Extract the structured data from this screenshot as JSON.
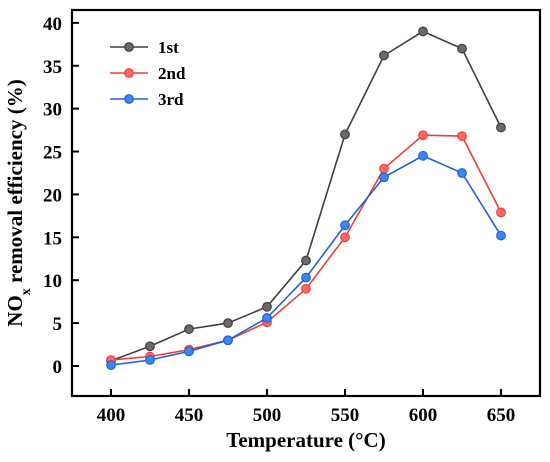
{
  "chart_data": {
    "type": "line",
    "x": [
      400,
      425,
      450,
      475,
      500,
      525,
      550,
      575,
      600,
      625,
      650
    ],
    "series": [
      {
        "name": "1st",
        "color": "#3f3f3f",
        "marker_fill": "#6a6a6a",
        "values": [
          0.6,
          2.3,
          4.3,
          5.0,
          6.9,
          12.3,
          27.0,
          36.2,
          39.0,
          37.0,
          27.8
        ]
      },
      {
        "name": "2nd",
        "color": "#e8403c",
        "marker_fill": "#ff6a66",
        "values": [
          0.7,
          1.1,
          1.9,
          3.0,
          5.1,
          9.0,
          15.0,
          23.0,
          26.9,
          26.8,
          17.9
        ]
      },
      {
        "name": "3rd",
        "color": "#1f63d6",
        "marker_fill": "#3f86f5",
        "values": [
          0.1,
          0.7,
          1.7,
          3.0,
          5.6,
          10.3,
          16.4,
          22.0,
          24.5,
          22.5,
          15.2
        ]
      }
    ],
    "xlim": [
      375,
      675
    ],
    "ylim": [
      -3.5,
      41.5
    ],
    "xticks": [
      400,
      450,
      500,
      550,
      600,
      650
    ],
    "yticks": [
      0,
      5,
      10,
      15,
      20,
      25,
      30,
      35,
      40
    ],
    "xlabel": "Temperature (°C)",
    "ylabel_main": "NO",
    "ylabel_sub": "x",
    "ylabel_rest": " removal efficiency (%)",
    "legend_position": "top-left",
    "grid": false
  }
}
